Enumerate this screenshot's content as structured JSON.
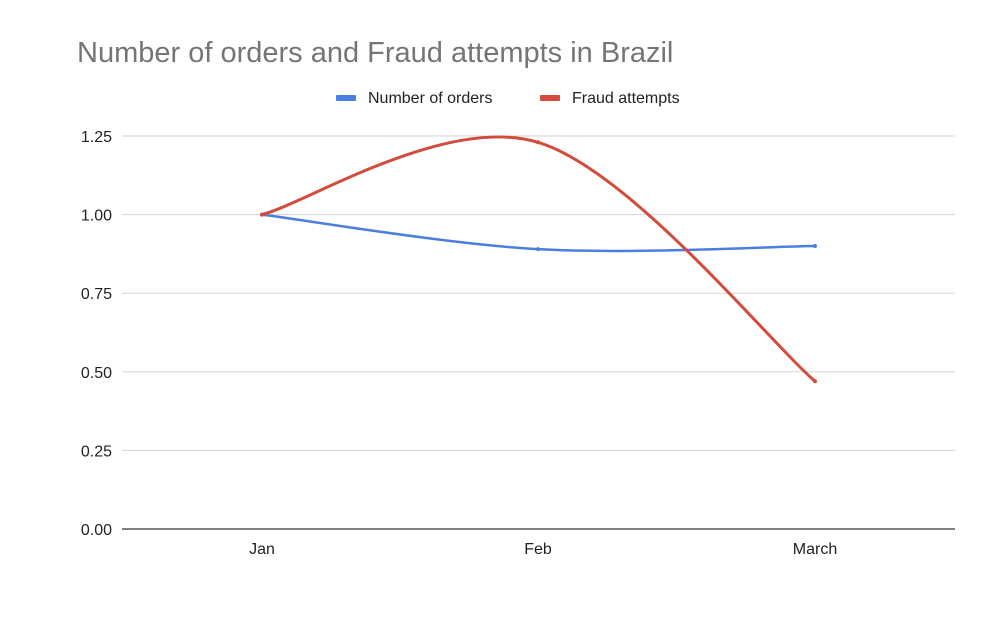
{
  "chart_data": {
    "type": "line",
    "title": "Number of orders and Fraud attempts in Brazil",
    "xlabel": "",
    "ylabel": "",
    "categories": [
      "Jan",
      "Feb",
      "March"
    ],
    "ylim": [
      0,
      1.25
    ],
    "yticks": [
      "0.00",
      "0.25",
      "0.50",
      "0.75",
      "1.00",
      "1.25"
    ],
    "grid": true,
    "legend_position": "top-center",
    "smooth": true,
    "series": [
      {
        "name": "Number of orders",
        "color": "#4a7fe0",
        "values": [
          1.0,
          0.89,
          0.9
        ]
      },
      {
        "name": "Fraud attempts",
        "color": "#d24b3c",
        "values": [
          1.0,
          1.23,
          0.47
        ]
      }
    ]
  }
}
